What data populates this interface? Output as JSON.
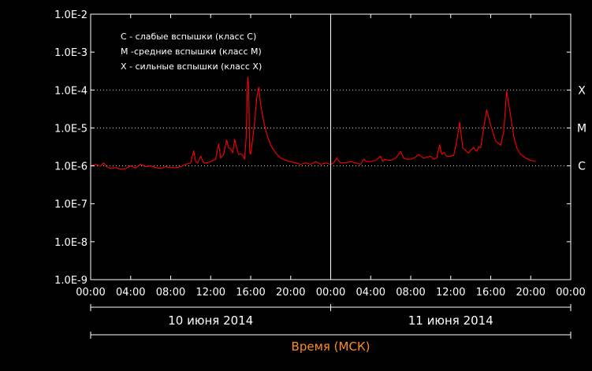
{
  "chart_data": {
    "type": "line",
    "ylabel": "",
    "xlabel": "Время (МСК)",
    "y_scale": "log",
    "ylim": [
      1e-09,
      0.01
    ],
    "y_tick_labels": [
      "1.0E-2",
      "1.0E-3",
      "1.0E-4",
      "1.0E-5",
      "1.0E-6",
      "1.0E-7",
      "1.0E-8",
      "1.0E-9"
    ],
    "x_range_hours": [
      0,
      48
    ],
    "x_tick_labels": [
      "00:00",
      "04:00",
      "08:00",
      "12:00",
      "16:00",
      "20:00",
      "00:00",
      "04:00",
      "08:00",
      "12:00",
      "16:00",
      "20:00",
      "00:00"
    ],
    "dates": [
      "10 июня 2014",
      "11 июня 2014"
    ],
    "legend": [
      "C - слабые вспышки (класс C)",
      "M -средние вспышки (класс M)",
      "X - сильные вспышки (класс X)"
    ],
    "class_thresholds": [
      {
        "label": "X",
        "value": 0.0001
      },
      {
        "label": "M",
        "value": 1e-05
      },
      {
        "label": "C",
        "value": 1e-06
      }
    ],
    "colors": {
      "background": "#000000",
      "series": "#ff0000",
      "axes": "#ffffff",
      "xlabel": "#ff8c1a"
    },
    "series": [
      {
        "x": [
          0,
          0.5,
          1.0,
          1.3,
          1.6,
          2.0,
          2.5,
          3.0,
          3.5,
          4.0,
          4.5,
          5.0,
          5.5,
          6.0,
          6.5,
          7.0,
          7.5,
          8.0,
          8.5,
          9.0,
          9.5,
          10.0,
          10.3,
          10.5,
          10.7,
          11.0,
          11.3,
          11.6,
          12.0,
          12.5,
          12.8,
          13.0,
          13.3,
          13.6,
          13.8,
          14.0,
          14.2,
          14.4,
          14.6,
          14.8,
          15.0,
          15.2,
          15.4,
          15.55,
          15.7,
          15.8,
          15.9,
          16.0,
          16.2,
          16.4,
          16.6,
          16.8,
          17.0,
          17.3,
          17.6,
          18.0,
          18.5,
          19.0,
          19.5,
          20.0,
          20.5,
          21.0,
          21.5,
          22.0,
          22.5,
          23.0,
          23.5,
          24.0,
          24.3,
          24.6,
          25.0,
          25.5,
          26.0,
          26.5,
          27.0,
          27.3,
          27.6,
          28.0,
          28.5,
          29.0,
          29.2,
          29.4,
          29.7,
          30.0,
          30.5,
          31.0,
          31.3,
          31.6,
          32.0,
          32.5,
          32.8,
          33.0,
          33.3,
          33.6,
          34.0,
          34.3,
          34.6,
          34.9,
          35.1,
          35.3,
          35.6,
          36.0,
          36.3,
          36.6,
          36.9,
          37.2,
          37.5,
          37.8,
          38.0,
          38.3,
          38.6,
          38.8,
          39.0,
          39.3,
          39.6,
          40.0,
          40.5,
          41.0,
          41.3,
          41.6,
          42.0,
          42.3,
          42.6,
          43.0,
          43.5,
          44.0,
          44.5
        ],
        "y": [
          1e-06,
          1.1e-06,
          1e-06,
          1.2e-06,
          9.5e-07,
          8.5e-07,
          9e-07,
          8.2e-07,
          8.5e-07,
          1e-06,
          8.8e-07,
          1.1e-06,
          9.5e-07,
          1e-06,
          9e-07,
          8.5e-07,
          9.5e-07,
          9e-07,
          9e-07,
          9.5e-07,
          1.1e-06,
          1.2e-06,
          2.5e-06,
          1.3e-06,
          1.2e-06,
          1.8e-06,
          1.2e-06,
          1.2e-06,
          1.3e-06,
          1.5e-06,
          3.8e-06,
          1.6e-06,
          2e-06,
          4.8e-06,
          3e-06,
          2.8e-06,
          2.2e-06,
          5e-06,
          3e-06,
          2e-06,
          2.1e-06,
          1.9e-06,
          1.5e-06,
          6e-06,
          0.00022,
          0.00012,
          2.5e-06,
          2e-06,
          5e-06,
          1.5e-05,
          6e-05,
          0.00012,
          4e-05,
          1.5e-05,
          7e-06,
          3.5e-06,
          2.2e-06,
          1.6e-06,
          1.4e-06,
          1.3e-06,
          1.2e-06,
          1.1e-06,
          1.2e-06,
          1.1e-06,
          1.3e-06,
          1.1e-06,
          1.2e-06,
          1.1e-06,
          1.2e-06,
          1.6e-06,
          1.2e-06,
          1.2e-06,
          1.3e-06,
          1.2e-06,
          1.1e-06,
          1.5e-06,
          1.3e-06,
          1.3e-06,
          1.4e-06,
          1.8e-06,
          1.3e-06,
          1.5e-06,
          1.4e-06,
          1.4e-06,
          1.6e-06,
          2.4e-06,
          1.6e-06,
          1.5e-06,
          1.5e-06,
          1.7e-06,
          2e-06,
          1.8e-06,
          1.6e-06,
          1.7e-06,
          1.8e-06,
          1.5e-06,
          1.6e-06,
          3.6e-06,
          2e-06,
          2.3e-06,
          1.8e-06,
          1.8e-06,
          1.9e-06,
          4.5e-06,
          1.4e-05,
          3e-06,
          2.5e-06,
          2.2e-06,
          2.6e-06,
          3e-06,
          2.4e-06,
          3.2e-06,
          3e-06,
          1e-05,
          3e-05,
          1.2e-05,
          4.5e-06,
          3.5e-06,
          8e-06,
          9.5e-05,
          2e-05,
          6e-06,
          3e-06,
          2e-06,
          1.6e-06,
          1.4e-06,
          1.3e-06
        ]
      }
    ]
  }
}
